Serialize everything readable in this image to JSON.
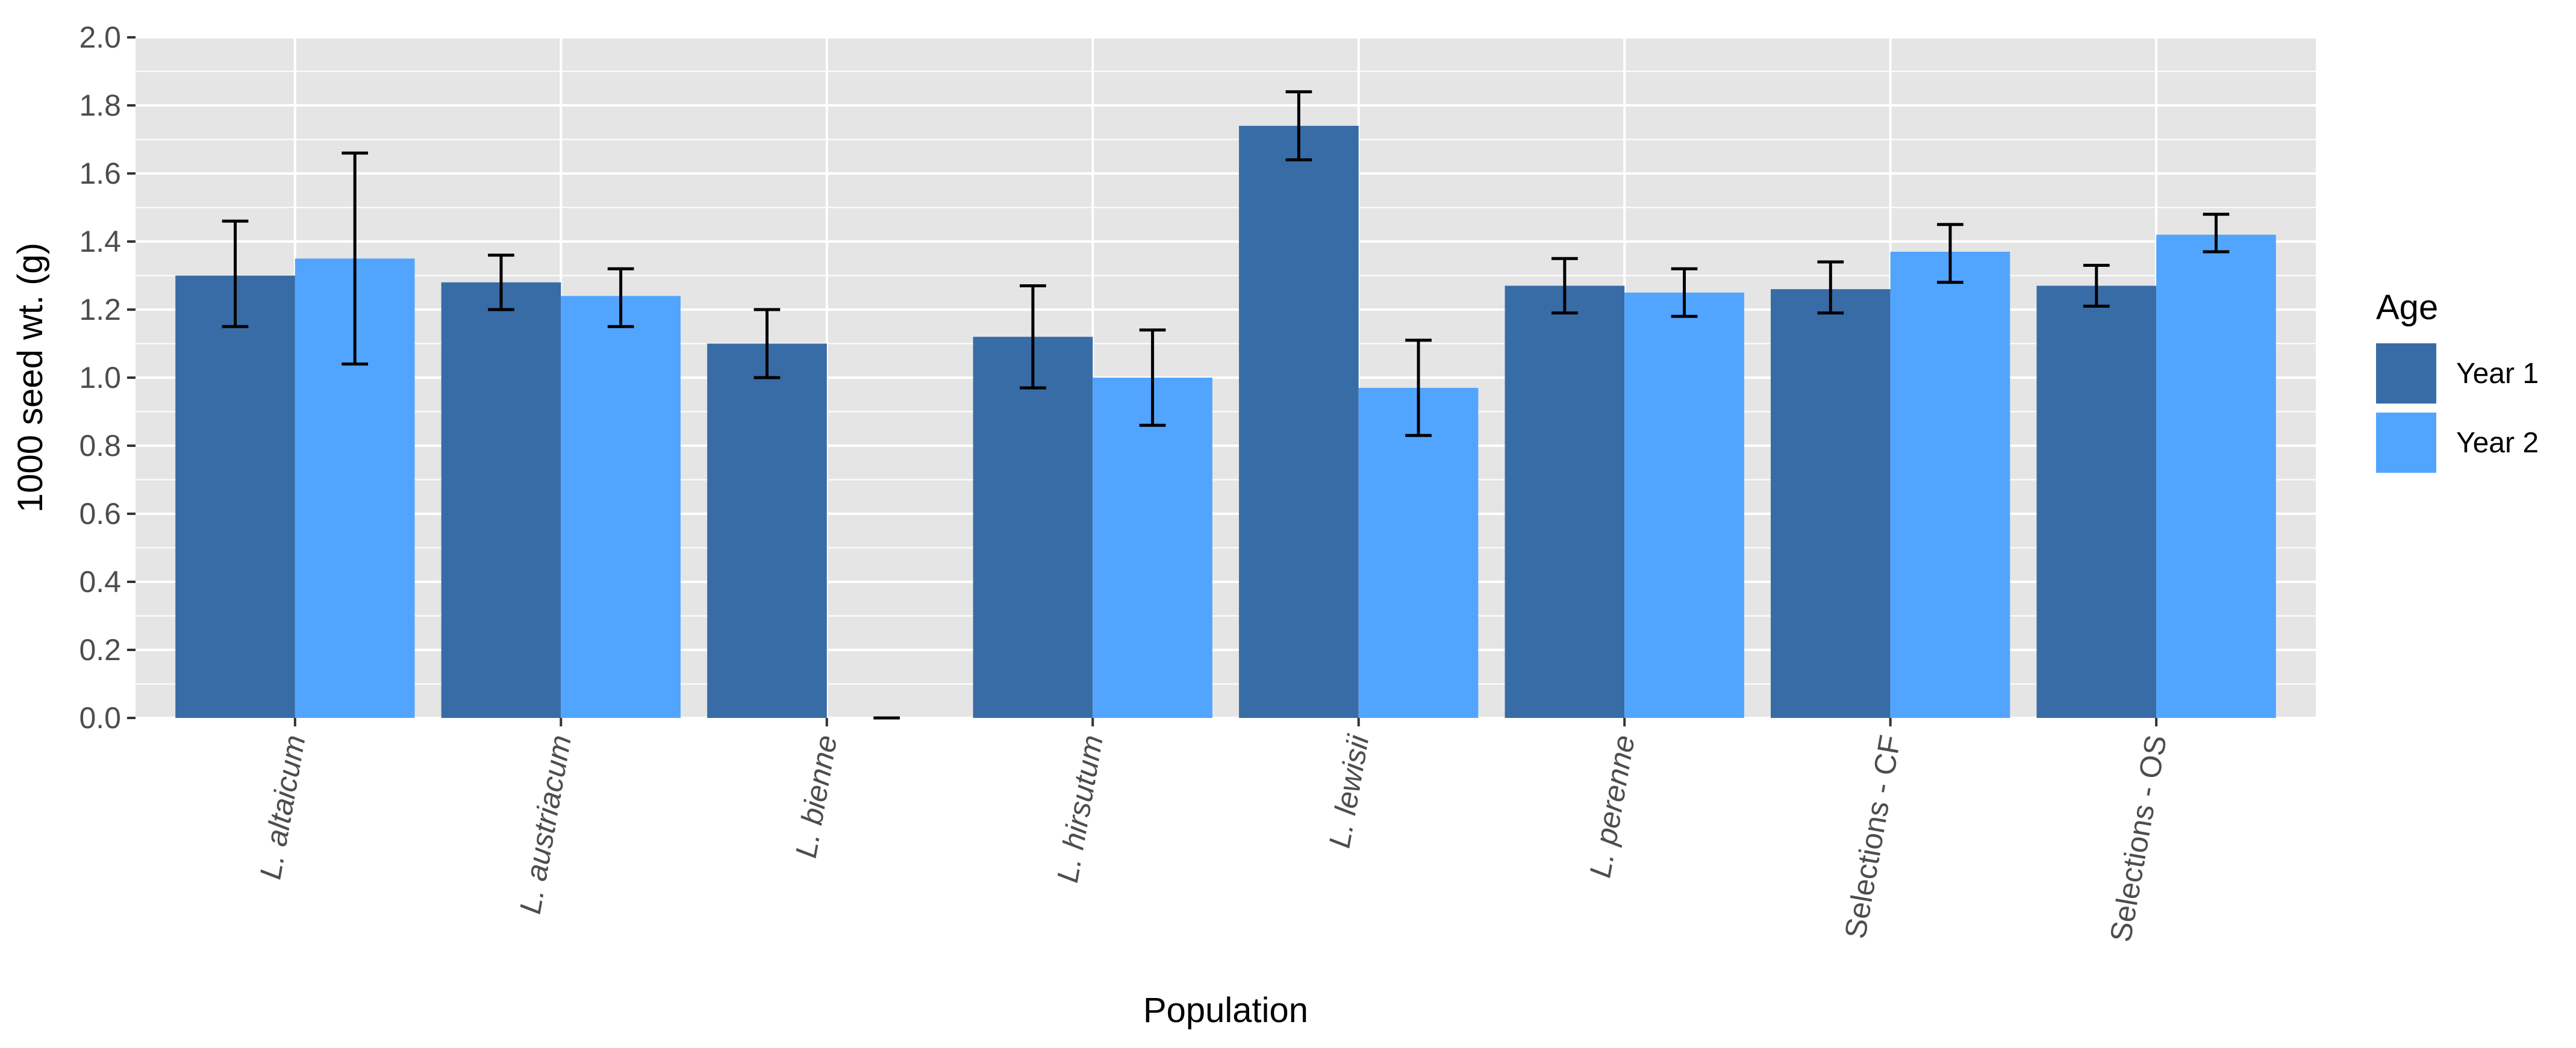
{
  "chart_data": {
    "type": "bar",
    "title": "",
    "xlabel": "Population",
    "ylabel": "1000 seed wt. (g)",
    "ylim": [
      0,
      2.0
    ],
    "yticks": [
      "0.0",
      "0.2",
      "0.4",
      "0.6",
      "0.8",
      "1.0",
      "1.2",
      "1.4",
      "1.6",
      "1.8",
      "2.0"
    ],
    "grid": true,
    "legend_title": "Age",
    "legend_position": "right",
    "categories": [
      {
        "label": "L. altaicum",
        "italic": true
      },
      {
        "label": "L. austriacum",
        "italic": true
      },
      {
        "label": "L. bienne",
        "italic": true
      },
      {
        "label": "L. hirsutum",
        "italic": true
      },
      {
        "label": "L. lewisii",
        "italic": true
      },
      {
        "label": "L. perenne",
        "italic": true
      },
      {
        "label": "Selections - CF",
        "italic": false
      },
      {
        "label": "Selections - OS",
        "italic": false
      }
    ],
    "series": [
      {
        "name": "Year 1",
        "color": "#386CA6",
        "values": [
          1.3,
          1.28,
          1.1,
          1.12,
          1.74,
          1.27,
          1.26,
          1.27
        ],
        "err_low": [
          1.15,
          1.2,
          1.0,
          0.97,
          1.64,
          1.19,
          1.19,
          1.21
        ],
        "err_high": [
          1.46,
          1.36,
          1.2,
          1.27,
          1.84,
          1.35,
          1.34,
          1.33
        ]
      },
      {
        "name": "Year 2",
        "color": "#52A5FF",
        "values": [
          1.35,
          1.24,
          0.0,
          1.0,
          0.97,
          1.25,
          1.37,
          1.42
        ],
        "err_low": [
          1.04,
          1.15,
          0.0,
          0.86,
          0.83,
          1.18,
          1.28,
          1.37
        ],
        "err_high": [
          1.66,
          1.32,
          0.0,
          1.14,
          1.11,
          1.32,
          1.45,
          1.48
        ]
      }
    ],
    "colors": {
      "panel_bg": "#E5E5E5",
      "grid": "#FFFFFF",
      "tick": "#333333",
      "errorbar": "#000000"
    }
  }
}
